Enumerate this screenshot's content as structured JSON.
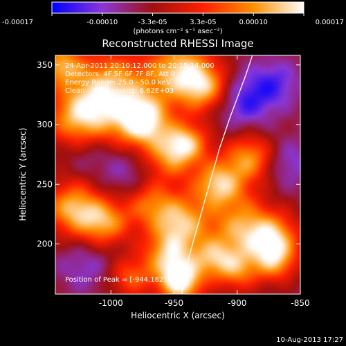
{
  "colorbar": {
    "tick_labels": [
      "-0.00017",
      "-0.00010",
      "-3.3e-05",
      "3.3e-05",
      "0.00010",
      "0.00017"
    ],
    "units": "(photons cm⁻² s⁻¹ asec⁻²)",
    "range": [
      -0.00017,
      0.00017
    ],
    "colormap": [
      "#0000ff",
      "#8a37d8",
      "#a01010",
      "#ff2000",
      "#ff9000",
      "#ffffff"
    ]
  },
  "chart_data": {
    "type": "heatmap",
    "title": "Reconstructed RHESSI Image",
    "xlabel": "Heliocentric X (arcsec)",
    "ylabel": "Heliocentric Y (arcsec)",
    "xlim": [
      -1044,
      -850
    ],
    "ylim": [
      158,
      358
    ],
    "x_ticks": [
      -1000,
      -950,
      -900,
      -850
    ],
    "x_tick_labels": [
      "-1000",
      "-950",
      "-900",
      "-850"
    ],
    "y_ticks": [
      200,
      250,
      300,
      350
    ],
    "y_tick_labels": [
      "200",
      "250",
      "300",
      "350"
    ],
    "grid": false,
    "annotations": {
      "time": "24-Apr-2011 20:10:12.000 to 20:15:14.000",
      "detectors": "Detectors: 4F 5F 6F 7F 8F, Att 0",
      "energy": "Energy Range: 25.0 - 50.0 keV",
      "clean": "Clean    Total counts: 6.62E+03",
      "peak": "Position of Peak = [-944,162]"
    },
    "limb_curve": {
      "x": [
        -944,
        -938,
        -930,
        -922,
        -914,
        -906,
        -899,
        -893,
        -888
      ],
      "y": [
        158,
        190,
        220,
        250,
        280,
        305,
        325,
        342,
        358
      ]
    },
    "blobs": [
      {
        "x": -1000,
        "y": 330,
        "r": 22,
        "v": 0.00013
      },
      {
        "x": -975,
        "y": 302,
        "r": 15,
        "v": 0.00017
      },
      {
        "x": -1025,
        "y": 305,
        "r": 18,
        "v": 0.00011
      },
      {
        "x": -945,
        "y": 345,
        "r": 18,
        "v": 0.00013
      },
      {
        "x": -925,
        "y": 330,
        "r": 14,
        "v": 9e-05
      },
      {
        "x": -1040,
        "y": 350,
        "r": 12,
        "v": 0.0001
      },
      {
        "x": -1020,
        "y": 278,
        "r": 13,
        "v": -9e-05
      },
      {
        "x": -985,
        "y": 258,
        "r": 18,
        "v": -0.0001
      },
      {
        "x": -1030,
        "y": 230,
        "r": 16,
        "v": 0.00012
      },
      {
        "x": -1005,
        "y": 218,
        "r": 14,
        "v": 0.0001
      },
      {
        "x": -955,
        "y": 272,
        "r": 14,
        "v": 8e-05
      },
      {
        "x": -940,
        "y": 285,
        "r": 12,
        "v": 0.00011
      },
      {
        "x": -915,
        "y": 250,
        "r": 14,
        "v": 0.00013
      },
      {
        "x": -890,
        "y": 272,
        "r": 14,
        "v": 0.0001
      },
      {
        "x": -970,
        "y": 235,
        "r": 14,
        "v": 7e-05
      },
      {
        "x": -945,
        "y": 218,
        "r": 16,
        "v": 0.00012
      },
      {
        "x": -955,
        "y": 190,
        "r": 14,
        "v": 0.0001
      },
      {
        "x": -945,
        "y": 168,
        "r": 12,
        "v": 0.00017
      },
      {
        "x": -1020,
        "y": 182,
        "r": 16,
        "v": -0.0001
      },
      {
        "x": -985,
        "y": 172,
        "r": 12,
        "v": 6e-05
      },
      {
        "x": -895,
        "y": 212,
        "r": 18,
        "v": 0.00011
      },
      {
        "x": -870,
        "y": 205,
        "r": 14,
        "v": 9e-05
      },
      {
        "x": -920,
        "y": 188,
        "r": 12,
        "v": 8e-05
      },
      {
        "x": -900,
        "y": 178,
        "r": 12,
        "v": 7e-05
      },
      {
        "x": -870,
        "y": 185,
        "r": 12,
        "v": 8e-05
      },
      {
        "x": -895,
        "y": 320,
        "r": 16,
        "v": -0.00014
      },
      {
        "x": -870,
        "y": 335,
        "r": 14,
        "v": -0.00012
      },
      {
        "x": -860,
        "y": 268,
        "r": 14,
        "v": -0.00011
      },
      {
        "x": -895,
        "y": 238,
        "r": 10,
        "v": -4e-05
      },
      {
        "x": -960,
        "y": 315,
        "r": 10,
        "v": -5e-05
      }
    ]
  },
  "footer": {
    "date": "10-Aug-2013 17:27"
  }
}
